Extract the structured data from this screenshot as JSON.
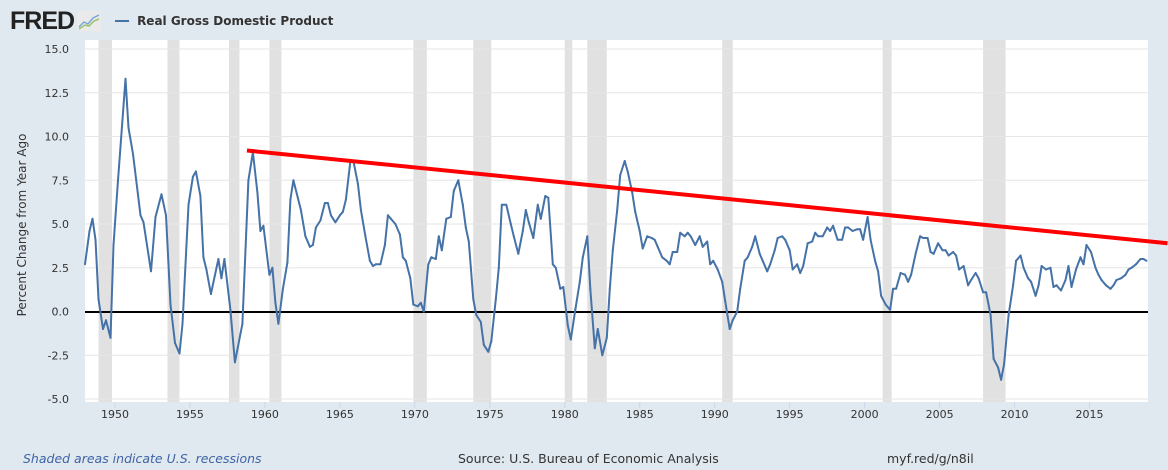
{
  "header": {
    "logo": "FRED",
    "legend": "Real Gross Domestic Product"
  },
  "footer": {
    "recessions_note": "Shaded areas indicate U.S. recessions",
    "source": "Source: U.S. Bureau of Economic Analysis",
    "short_url": "myf.red/g/n8il"
  },
  "chart_data": {
    "type": "line",
    "title": "Real Gross Domestic Product",
    "xlabel": "",
    "ylabel": "Percent Change from Year Ago",
    "xlim": [
      1948,
      2018.9
    ],
    "ylim": [
      -5,
      15
    ],
    "grid": true,
    "legend": "top-left",
    "yticks": [
      "15.0",
      "12.5",
      "10.0",
      "7.5",
      "5.0",
      "2.5",
      "0.0",
      "-2.5",
      "-5.0"
    ],
    "xticks": [
      "1950",
      "1955",
      "1960",
      "1965",
      "1970",
      "1975",
      "1980",
      "1985",
      "1990",
      "1995",
      "2000",
      "2005",
      "2010",
      "2015"
    ],
    "colors": {
      "series": "#4572a7",
      "trend": "#ff0000",
      "zero": "#000000",
      "recession": "#e1e1e1"
    },
    "recessions": [
      [
        1948.9,
        1949.8
      ],
      [
        1953.5,
        1954.3
      ],
      [
        1957.6,
        1958.3
      ],
      [
        1960.3,
        1961.1
      ],
      [
        1969.9,
        1970.8
      ],
      [
        1973.9,
        1975.1
      ],
      [
        1980.0,
        1980.5
      ],
      [
        1981.5,
        1982.8
      ],
      [
        1990.5,
        1991.2
      ],
      [
        2001.2,
        2001.8
      ],
      [
        2007.9,
        2009.4
      ]
    ],
    "trend_line": {
      "x": [
        1958.8,
        2020.2
      ],
      "y": [
        9.2,
        3.9
      ]
    },
    "series": [
      {
        "name": "Real Gross Domestic Product",
        "x": [
          1948.0,
          1948.3,
          1948.5,
          1948.7,
          1948.9,
          1949.2,
          1949.4,
          1949.7,
          1949.9,
          1950.2,
          1950.7,
          1950.9,
          1951.2,
          1951.7,
          1951.9,
          1952.4,
          1952.7,
          1953.1,
          1953.4,
          1953.7,
          1954.0,
          1954.3,
          1954.5,
          1954.9,
          1955.2,
          1955.4,
          1955.7,
          1955.9,
          1956.1,
          1956.4,
          1956.9,
          1957.1,
          1957.3,
          1957.7,
          1958.0,
          1958.5,
          1958.9,
          1959.2,
          1959.5,
          1959.7,
          1959.9,
          1960.3,
          1960.5,
          1960.7,
          1960.9,
          1961.2,
          1961.5,
          1961.7,
          1961.9,
          1962.4,
          1962.7,
          1963.0,
          1963.2,
          1963.4,
          1963.7,
          1964.0,
          1964.2,
          1964.4,
          1964.7,
          1965.0,
          1965.2,
          1965.4,
          1965.7,
          1965.9,
          1966.2,
          1966.4,
          1966.7,
          1967.0,
          1967.2,
          1967.4,
          1967.7,
          1968.0,
          1968.2,
          1968.4,
          1968.7,
          1969.0,
          1969.2,
          1969.4,
          1969.7,
          1969.9,
          1970.2,
          1970.4,
          1970.6,
          1970.9,
          1971.1,
          1971.4,
          1971.6,
          1971.8,
          1972.1,
          1972.4,
          1972.6,
          1972.9,
          1973.2,
          1973.4,
          1973.6,
          1973.9,
          1974.1,
          1974.4,
          1974.6,
          1974.9,
          1975.1,
          1975.4,
          1975.6,
          1975.8,
          1976.1,
          1976.4,
          1976.6,
          1976.9,
          1977.2,
          1977.4,
          1977.6,
          1977.9,
          1978.2,
          1978.4,
          1978.7,
          1978.9,
          1979.2,
          1979.4,
          1979.7,
          1979.9,
          1980.2,
          1980.4,
          1980.7,
          1981.0,
          1981.2,
          1981.5,
          1981.7,
          1982.0,
          1982.2,
          1982.5,
          1982.8,
          1983.0,
          1983.2,
          1983.5,
          1983.7,
          1984.0,
          1984.2,
          1984.5,
          1984.7,
          1985.0,
          1985.2,
          1985.5,
          1985.8,
          1986.0,
          1986.2,
          1986.5,
          1986.8,
          1987.0,
          1987.2,
          1987.5,
          1987.7,
          1988.0,
          1988.2,
          1988.4,
          1988.7,
          1989.0,
          1989.2,
          1989.5,
          1989.7,
          1989.9,
          1990.2,
          1990.5,
          1990.7,
          1991.0,
          1991.2,
          1991.5,
          1991.7,
          1992.0,
          1992.2,
          1992.5,
          1992.7,
          1993.0,
          1993.2,
          1993.5,
          1993.7,
          1994.0,
          1994.2,
          1994.5,
          1994.7,
          1995.0,
          1995.2,
          1995.5,
          1995.7,
          1995.9,
          1996.2,
          1996.5,
          1996.7,
          1996.9,
          1997.2,
          1997.5,
          1997.7,
          1997.9,
          1998.2,
          1998.5,
          1998.7,
          1998.9,
          1999.2,
          1999.5,
          1999.7,
          1999.9,
          2000.2,
          2000.4,
          2000.7,
          2000.9,
          2001.1,
          2001.4,
          2001.7,
          2001.9,
          2002.1,
          2002.4,
          2002.7,
          2002.9,
          2003.1,
          2003.4,
          2003.7,
          2003.9,
          2004.2,
          2004.4,
          2004.6,
          2004.9,
          2005.2,
          2005.4,
          2005.6,
          2005.9,
          2006.1,
          2006.3,
          2006.6,
          2006.9,
          2007.1,
          2007.4,
          2007.6,
          2007.9,
          2008.1,
          2008.4,
          2008.6,
          2008.9,
          2009.1,
          2009.3,
          2009.6,
          2009.9,
          2010.1,
          2010.4,
          2010.6,
          2010.9,
          2011.1,
          2011.4,
          2011.6,
          2011.8,
          2012.1,
          2012.4,
          2012.6,
          2012.8,
          2013.1,
          2013.4,
          2013.6,
          2013.8,
          2014.1,
          2014.4,
          2014.6,
          2014.8,
          2015.1,
          2015.4,
          2015.6,
          2015.8,
          2016.1,
          2016.4,
          2016.6,
          2016.8,
          2017.1,
          2017.4,
          2017.6,
          2017.8,
          2018.1,
          2018.4,
          2018.6,
          2018.8
        ],
        "y": [
          2.7,
          4.6,
          5.3,
          4.1,
          0.7,
          -1.0,
          -0.5,
          -1.5,
          3.8,
          7.5,
          13.3,
          10.5,
          9.0,
          5.5,
          5.1,
          2.3,
          5.4,
          6.7,
          5.5,
          0.4,
          -1.8,
          -2.4,
          -0.7,
          6.1,
          7.7,
          8.0,
          6.6,
          3.1,
          2.4,
          1.0,
          3.0,
          1.9,
          3.0,
          0.1,
          -2.9,
          -0.7,
          7.5,
          9.1,
          6.8,
          4.6,
          4.9,
          2.1,
          2.5,
          0.5,
          -0.7,
          1.3,
          2.8,
          6.4,
          7.5,
          5.8,
          4.3,
          3.7,
          3.8,
          4.8,
          5.2,
          6.2,
          6.2,
          5.5,
          5.1,
          5.5,
          5.7,
          6.4,
          8.6,
          8.6,
          7.3,
          5.8,
          4.3,
          2.9,
          2.6,
          2.7,
          2.7,
          3.8,
          5.5,
          5.3,
          5.0,
          4.4,
          3.1,
          2.9,
          1.9,
          0.4,
          0.3,
          0.5,
          0.0,
          2.7,
          3.1,
          3.0,
          4.3,
          3.5,
          5.3,
          5.4,
          6.9,
          7.5,
          6.1,
          4.8,
          4.0,
          0.7,
          -0.2,
          -0.6,
          -1.9,
          -2.3,
          -1.7,
          0.7,
          2.5,
          6.1,
          6.1,
          5.0,
          4.3,
          3.3,
          4.6,
          5.8,
          5.1,
          4.2,
          6.1,
          5.3,
          6.6,
          6.5,
          2.7,
          2.5,
          1.3,
          1.4,
          -0.8,
          -1.6,
          0.1,
          1.7,
          3.1,
          4.3,
          1.3,
          -2.1,
          -1.0,
          -2.5,
          -1.5,
          1.3,
          3.5,
          5.8,
          7.8,
          8.6,
          8.0,
          6.8,
          5.7,
          4.6,
          3.6,
          4.3,
          4.2,
          4.1,
          3.7,
          3.1,
          2.9,
          2.7,
          3.4,
          3.4,
          4.5,
          4.3,
          4.5,
          4.3,
          3.8,
          4.3,
          3.7,
          4.0,
          2.7,
          2.9,
          2.4,
          1.7,
          0.6,
          -1.0,
          -0.5,
          0.0,
          1.3,
          2.9,
          3.1,
          3.7,
          4.3,
          3.3,
          2.9,
          2.3,
          2.7,
          3.5,
          4.2,
          4.3,
          4.1,
          3.5,
          2.4,
          2.7,
          2.2,
          2.6,
          3.9,
          4.0,
          4.5,
          4.3,
          4.3,
          4.8,
          4.6,
          4.9,
          4.1,
          4.1,
          4.8,
          4.8,
          4.6,
          4.7,
          4.7,
          4.1,
          5.4,
          4.1,
          2.9,
          2.3,
          0.9,
          0.4,
          0.1,
          1.3,
          1.3,
          2.2,
          2.1,
          1.7,
          2.1,
          3.3,
          4.3,
          4.2,
          4.2,
          3.4,
          3.3,
          3.9,
          3.5,
          3.5,
          3.2,
          3.4,
          3.2,
          2.4,
          2.6,
          1.5,
          1.8,
          2.2,
          1.9,
          1.1,
          1.1,
          -0.2,
          -2.7,
          -3.2,
          -3.9,
          -3.0,
          -0.2,
          1.5,
          2.9,
          3.2,
          2.5,
          1.9,
          1.7,
          0.9,
          1.5,
          2.6,
          2.4,
          2.5,
          1.4,
          1.5,
          1.2,
          1.8,
          2.6,
          1.4,
          2.4,
          3.1,
          2.7,
          3.8,
          3.4,
          2.5,
          2.1,
          1.8,
          1.5,
          1.3,
          1.5,
          1.8,
          1.9,
          2.1,
          2.4,
          2.5,
          2.7,
          3.0,
          3.0,
          2.9
        ]
      }
    ]
  }
}
